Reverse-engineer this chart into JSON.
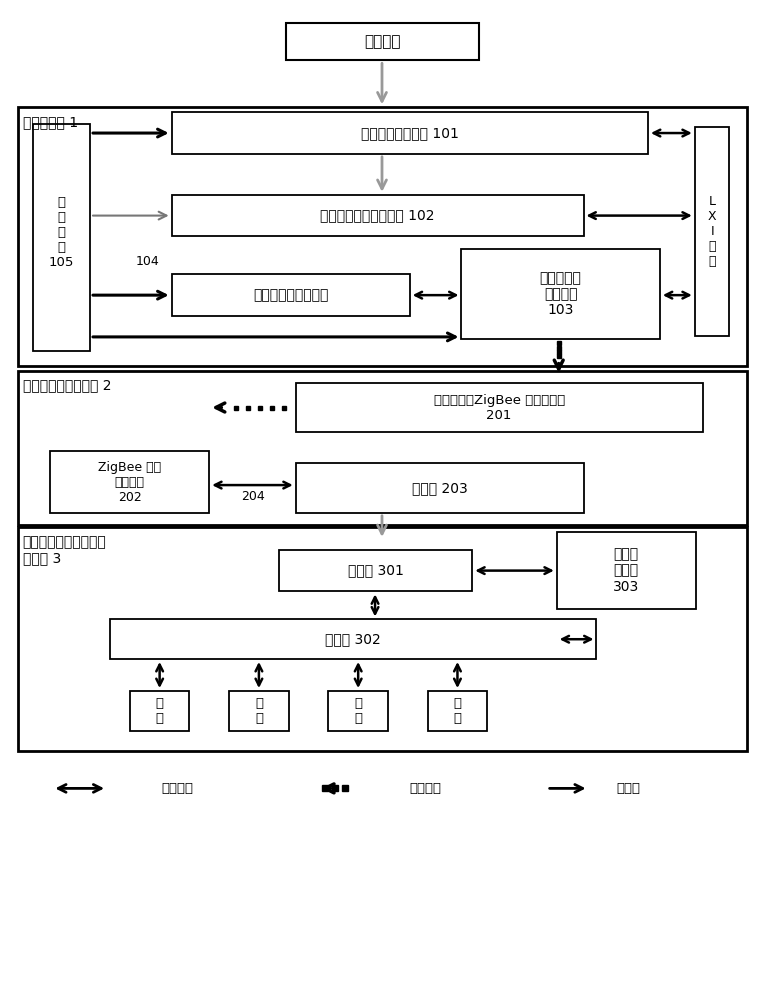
{
  "bg_color": "#ffffff",
  "title_monitor": "监测水域",
  "section1_label": "前端子系统 1",
  "section2_label": "中部通信转换子系统 2",
  "section3_label": "终端处理统计预警发布\n子系统 3",
  "box101": "采样预处理子系统 101",
  "box102": "图像采集和计数子系统 102",
  "box_env": "外部环境监测子系统",
  "box103": "无线信号传\n输子系统\n103",
  "box_power": "电\n源\n部\n分\n105",
  "lxi_label": "L\nX\nI\n总\n线",
  "box201": "各个蒞首（ZigBee 通信模块）\n201",
  "box202": "ZigBee 二次\n汇聚节点\n202",
  "box203": "路由器 203",
  "label204": "204",
  "box301": "服务器 301",
  "box302": "客户机 302",
  "box303": "预警报\n警装置\n303",
  "user_label": "用\n户",
  "legend_wired": "有线通信",
  "legend_wireless": "无线通信",
  "legend_power": "电源线",
  "label104": "104"
}
